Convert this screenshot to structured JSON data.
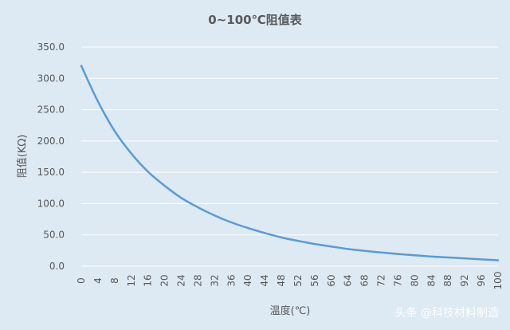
{
  "watermark": "头条 @科技材料制造",
  "chart_data": {
    "type": "line",
    "title": "0~100℃阻值表",
    "xlabel": "温度(℃)",
    "ylabel": "阻值(KΩ)",
    "ylim": [
      0,
      350
    ],
    "y_ticks": [
      "0.0",
      "50.0",
      "100.0",
      "150.0",
      "200.0",
      "250.0",
      "300.0",
      "350.0"
    ],
    "x_ticks": [
      "0",
      "4",
      "8",
      "12",
      "16",
      "20",
      "24",
      "28",
      "32",
      "36",
      "40",
      "44",
      "48",
      "52",
      "56",
      "60",
      "64",
      "68",
      "72",
      "76",
      "80",
      "84",
      "88",
      "92",
      "96",
      "100"
    ],
    "grid": "horizontal",
    "series_color": "#5b9bd5",
    "series": [
      {
        "x": [
          0,
          4,
          8,
          12,
          16,
          20,
          24,
          28,
          32,
          36,
          40,
          44,
          48,
          52,
          56,
          60,
          64,
          68,
          72,
          76,
          80,
          84,
          88,
          92,
          96,
          100
        ],
        "values": [
          320.0,
          263.0,
          216.0,
          180.0,
          151.0,
          128.5,
          109.0,
          94.0,
          81.0,
          70.0,
          61.0,
          53.0,
          46.0,
          40.5,
          35.5,
          31.5,
          27.5,
          24.5,
          22.0,
          19.5,
          17.5,
          15.5,
          14.0,
          12.5,
          11.0,
          9.5
        ]
      }
    ]
  }
}
